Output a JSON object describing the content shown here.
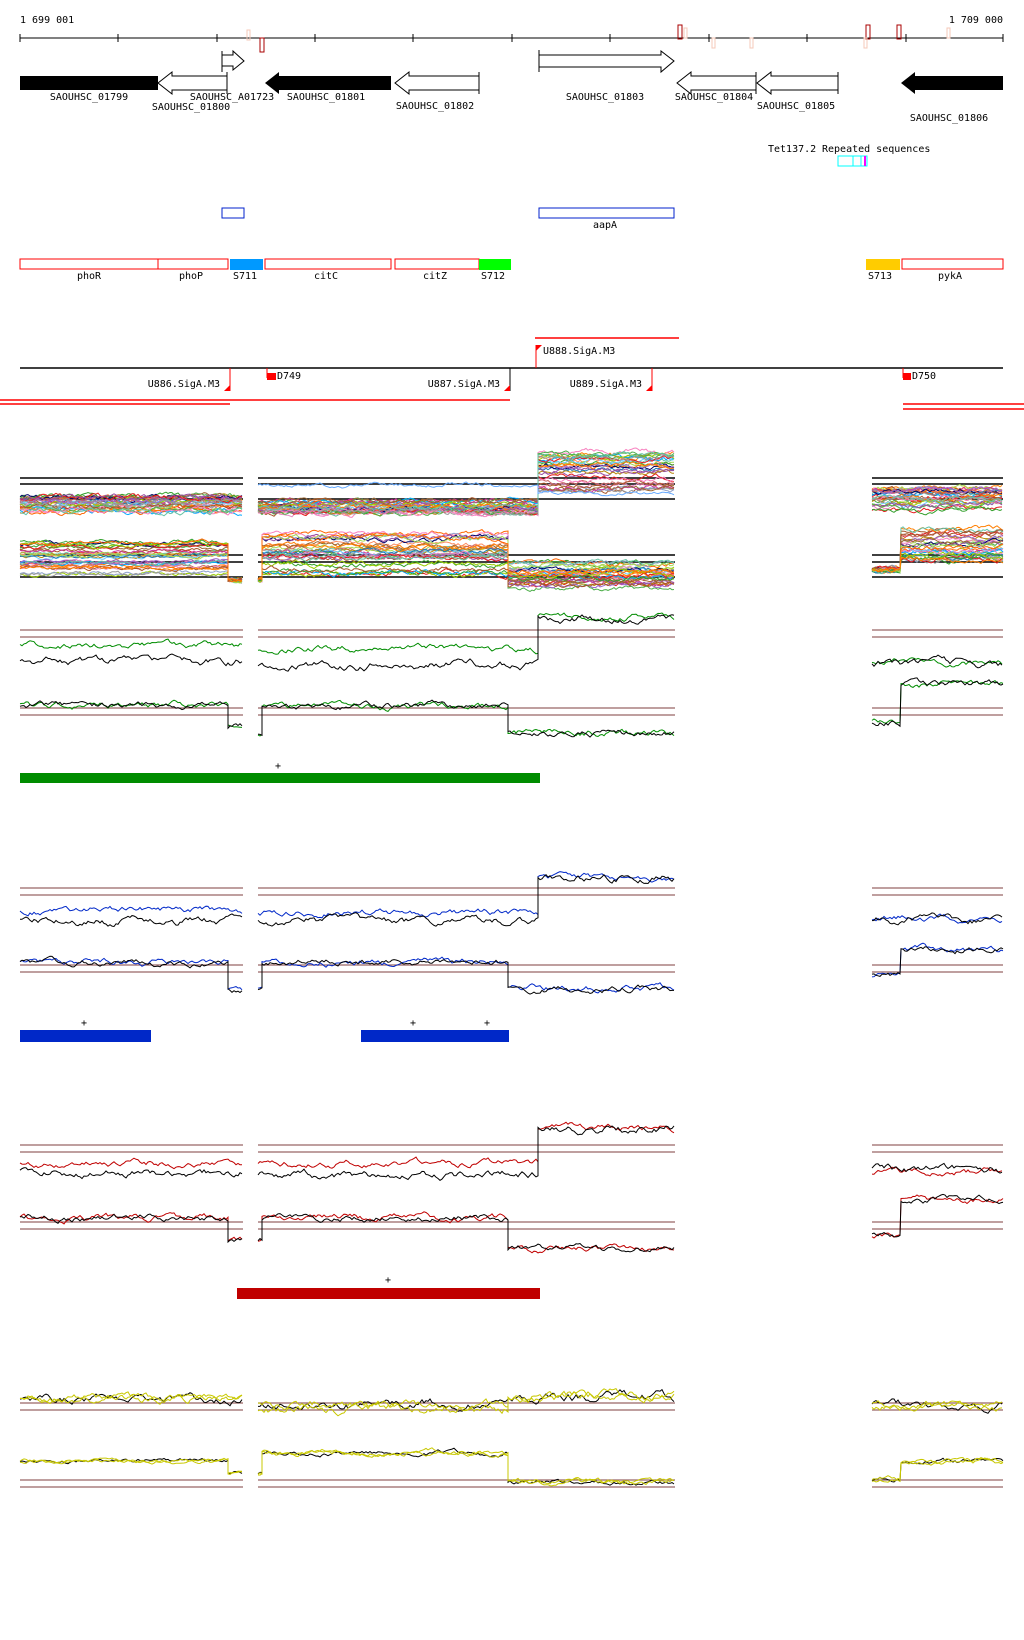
{
  "ruler": {
    "start_label": "1 699 001",
    "end_label": "1 709 000"
  },
  "genes": [
    {
      "label": "SAOUHSC_01799",
      "strand": "-",
      "style": "filled"
    },
    {
      "label": "SAOUHSC_01800",
      "strand": "-",
      "style": "open"
    },
    {
      "label": "SAOUHSC_A01723",
      "strand": "+",
      "style": "open"
    },
    {
      "label": "SAOUHSC_01801",
      "strand": "-",
      "style": "filled"
    },
    {
      "label": "SAOUHSC_01802",
      "strand": "-",
      "style": "open"
    },
    {
      "label": "SAOUHSC_01803",
      "strand": "+",
      "style": "open"
    },
    {
      "label": "SAOUHSC_01804",
      "strand": "-",
      "style": "open"
    },
    {
      "label": "SAOUHSC_01805",
      "strand": "-",
      "style": "open"
    },
    {
      "label": "SAOUHSC_01806",
      "strand": "-",
      "style": "filled"
    }
  ],
  "repeats": {
    "label_a": "Tet137.2",
    "label_b": "Repeated sequences"
  },
  "rna_features": [
    {
      "label": "aapA"
    }
  ],
  "annotations": [
    {
      "label": "phoR"
    },
    {
      "label": "phoP"
    },
    {
      "label": "S711",
      "color": "#0099ff"
    },
    {
      "label": "citC"
    },
    {
      "label": "citZ"
    },
    {
      "label": "S712",
      "color": "#00ff00"
    },
    {
      "label": "S713",
      "color": "#ffcc00"
    },
    {
      "label": "pykA"
    }
  ],
  "promoters": [
    {
      "label": "U888.SigA.M3"
    },
    {
      "label": "U886.SigA.M3"
    },
    {
      "label": "D749"
    },
    {
      "label": "U887.SigA.M3"
    },
    {
      "label": "U889.SigA.M3"
    },
    {
      "label": "D750"
    }
  ],
  "tracks": {
    "green_marker": "+",
    "blue_marker": "+",
    "red_marker": "+",
    "colors": {
      "green": "#008c00",
      "blue": "#0028c8",
      "red": "#c00000",
      "yellow": "#c8c800",
      "reference": "#996666"
    }
  }
}
